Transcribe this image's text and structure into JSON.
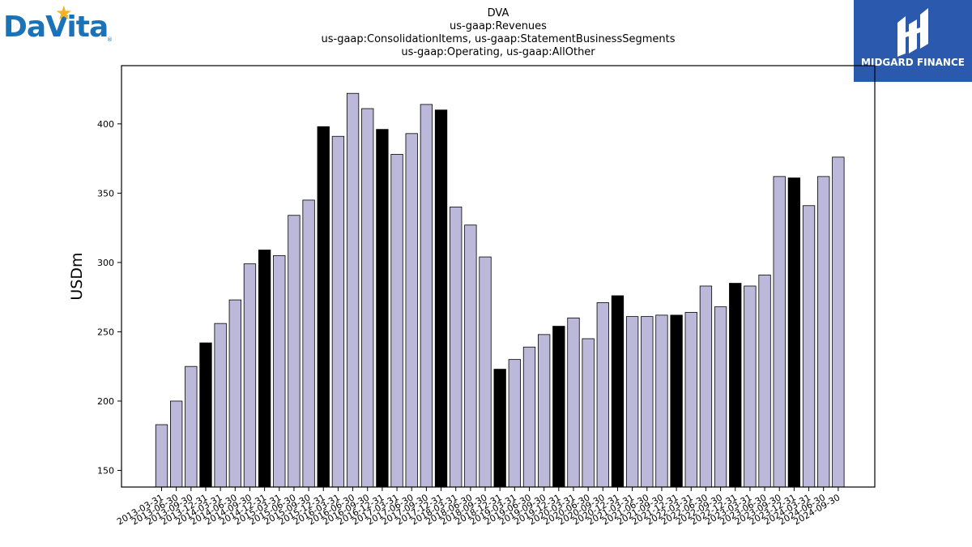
{
  "logos": {
    "left": {
      "wordmark": "DaVita",
      "registered": "®",
      "star_color": "#f5b324",
      "text_color": "#1a72b8"
    },
    "right": {
      "wordmark": "MIDGARD FINANCE",
      "background": "#2a59ad"
    }
  },
  "chart_data": {
    "type": "bar",
    "title_lines": [
      "DVA",
      "us-gaap:Revenues",
      "us-gaap:ConsolidationItems, us-gaap:StatementBusinessSegments",
      "us-gaap:Operating, us-gaap:AllOther"
    ],
    "ylabel": "USDm",
    "xlabel": "",
    "ylim": [
      138,
      442
    ],
    "yticks": [
      150,
      200,
      250,
      300,
      350,
      400
    ],
    "colors": {
      "quarter": "#bcb8d9",
      "year_end": "#000000",
      "edge": "#000000"
    },
    "categories": [
      "2013-03-31",
      "2013-06-30",
      "2013-09-30",
      "2013-12-31",
      "2014-03-31",
      "2014-06-30",
      "2014-09-30",
      "2014-12-31",
      "2015-03-31",
      "2015-06-30",
      "2015-09-30",
      "2015-12-31",
      "2016-03-31",
      "2016-06-30",
      "2016-09-30",
      "2016-12-31",
      "2017-03-31",
      "2017-06-30",
      "2017-09-30",
      "2017-12-31",
      "2018-03-31",
      "2018-06-30",
      "2018-09-30",
      "2018-12-31",
      "2019-03-31",
      "2019-06-30",
      "2019-09-30",
      "2019-12-31",
      "2020-03-31",
      "2020-06-30",
      "2020-09-30",
      "2020-12-31",
      "2021-03-31",
      "2021-06-30",
      "2021-09-30",
      "2021-12-31",
      "2022-03-31",
      "2022-06-30",
      "2022-09-30",
      "2022-12-31",
      "2023-03-31",
      "2023-06-30",
      "2023-09-30",
      "2023-12-31",
      "2024-03-31",
      "2024-06-30",
      "2024-09-30"
    ],
    "values": [
      183,
      200,
      225,
      242,
      256,
      273,
      299,
      309,
      305,
      334,
      345,
      398,
      391,
      422,
      411,
      396,
      378,
      393,
      414,
      410,
      340,
      327,
      304,
      223,
      230,
      239,
      248,
      254,
      260,
      245,
      271,
      276,
      261,
      261,
      262,
      262,
      264,
      283,
      268,
      285,
      283,
      291,
      362,
      361,
      341,
      362,
      376
    ],
    "year_end_flags": [
      false,
      false,
      false,
      true,
      false,
      false,
      false,
      true,
      false,
      false,
      false,
      true,
      false,
      false,
      false,
      true,
      false,
      false,
      false,
      true,
      false,
      false,
      false,
      true,
      false,
      false,
      false,
      true,
      false,
      false,
      false,
      true,
      false,
      false,
      false,
      true,
      false,
      false,
      false,
      true,
      false,
      false,
      false,
      true,
      false,
      false,
      false
    ],
    "grid": false,
    "legend": "none"
  }
}
